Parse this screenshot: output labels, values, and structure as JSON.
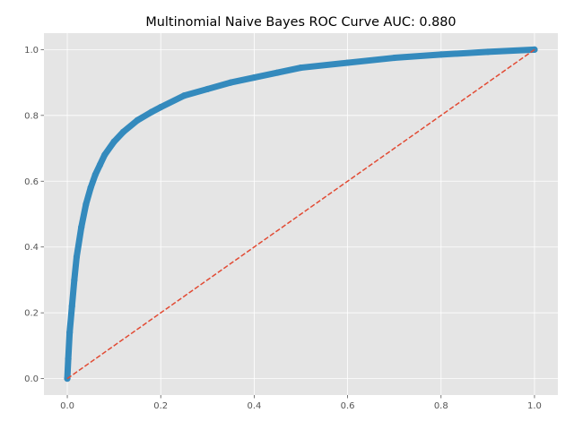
{
  "chart_data": {
    "type": "line",
    "title": "Multinomial Naive Bayes ROC Curve  AUC: 0.880",
    "xlabel": "",
    "ylabel": "",
    "xlim": [
      -0.05,
      1.05
    ],
    "ylim": [
      -0.05,
      1.05
    ],
    "x_ticks": [
      0.0,
      0.2,
      0.4,
      0.6,
      0.8,
      1.0
    ],
    "y_ticks": [
      0.0,
      0.2,
      0.4,
      0.6,
      0.8,
      1.0
    ],
    "x_tick_labels": [
      "0.0",
      "0.2",
      "0.4",
      "0.6",
      "0.8",
      "1.0"
    ],
    "y_tick_labels": [
      "0.0",
      "0.2",
      "0.4",
      "0.6",
      "0.8",
      "1.0"
    ],
    "grid": true,
    "style": "ggplot",
    "series": [
      {
        "kind": "roc-curve",
        "marker": "dot",
        "color": "#348ABD",
        "x": [
          0.0,
          0.002,
          0.005,
          0.01,
          0.015,
          0.02,
          0.03,
          0.04,
          0.05,
          0.06,
          0.07,
          0.08,
          0.1,
          0.12,
          0.15,
          0.18,
          0.2,
          0.25,
          0.3,
          0.35,
          0.4,
          0.45,
          0.5,
          0.6,
          0.7,
          0.8,
          0.9,
          1.0
        ],
        "y": [
          0.0,
          0.06,
          0.14,
          0.22,
          0.3,
          0.37,
          0.46,
          0.53,
          0.58,
          0.62,
          0.65,
          0.68,
          0.72,
          0.75,
          0.785,
          0.81,
          0.825,
          0.86,
          0.88,
          0.9,
          0.915,
          0.93,
          0.945,
          0.96,
          0.975,
          0.985,
          0.993,
          1.0
        ]
      },
      {
        "kind": "chance-line",
        "line_style": "dashed",
        "color": "#E24A33",
        "x": [
          0.0,
          1.0
        ],
        "y": [
          0.0,
          1.0
        ]
      }
    ]
  }
}
